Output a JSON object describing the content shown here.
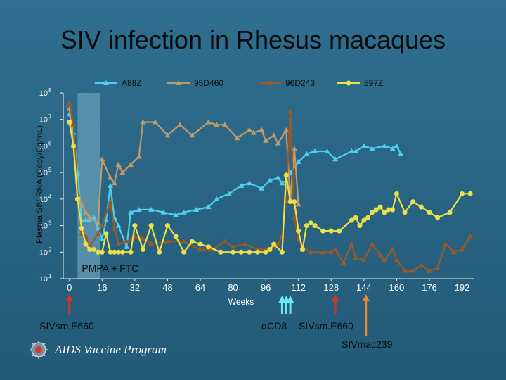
{
  "title": "SIV infection in Rhesus macaques",
  "chart_data": {
    "type": "line",
    "ylabel": "Plasma SIV RNA (Copy/Eq/mL)",
    "xlabel": "Weeks",
    "y_scale": "log",
    "ylim_exp": [
      1,
      8
    ],
    "xlim": [
      -3,
      198
    ],
    "x_ticks": [
      "0",
      "16",
      "32",
      "48",
      "64",
      "80",
      "96",
      "112",
      "128",
      "144",
      "160",
      "176",
      "192"
    ],
    "y_ticks": [
      "10^1",
      "10^2",
      "10^3",
      "10^4",
      "10^5",
      "10^6",
      "10^7",
      "10^8"
    ],
    "legend_position": "top",
    "shaded_region": {
      "label": "PMPA + FTC",
      "x": [
        4,
        15
      ]
    },
    "series": [
      {
        "name": "A88Z",
        "color": "#4fd0ea",
        "marker": "triangle",
        "points": [
          [
            0,
            7.2
          ],
          [
            2,
            6.5
          ],
          [
            4,
            5.0
          ],
          [
            6,
            3.2
          ],
          [
            8,
            3.2
          ],
          [
            10,
            3.2
          ],
          [
            12,
            3.3
          ],
          [
            14,
            2.9
          ],
          [
            16,
            2.5
          ],
          [
            18,
            3.2
          ],
          [
            20,
            4.5
          ],
          [
            22,
            3.3
          ],
          [
            24,
            3.0
          ],
          [
            28,
            2.2
          ],
          [
            30,
            3.5
          ],
          [
            34,
            3.6
          ],
          [
            40,
            3.6
          ],
          [
            46,
            3.5
          ],
          [
            52,
            3.4
          ],
          [
            56,
            3.5
          ],
          [
            62,
            3.6
          ],
          [
            68,
            3.7
          ],
          [
            72,
            4.0
          ],
          [
            78,
            4.2
          ],
          [
            84,
            4.5
          ],
          [
            88,
            4.6
          ],
          [
            94,
            4.4
          ],
          [
            98,
            4.7
          ],
          [
            102,
            4.8
          ],
          [
            104,
            4.6
          ],
          [
            106,
            4.7
          ],
          [
            108,
            5.0
          ],
          [
            112,
            5.4
          ],
          [
            116,
            5.7
          ],
          [
            120,
            5.8
          ],
          [
            126,
            5.8
          ],
          [
            130,
            5.5
          ],
          [
            138,
            5.8
          ],
          [
            140,
            5.8
          ],
          [
            144,
            6.0
          ],
          [
            148,
            5.9
          ],
          [
            154,
            6.0
          ],
          [
            158,
            5.9
          ],
          [
            160,
            6.0
          ],
          [
            162,
            5.7
          ]
        ]
      },
      {
        "name": "95D460",
        "color": "#c29a6a",
        "marker": "triangle",
        "points": [
          [
            0,
            7.4
          ],
          [
            2,
            6.0
          ],
          [
            4,
            4.2
          ],
          [
            6,
            3.8
          ],
          [
            8,
            3.5
          ],
          [
            10,
            3.3
          ],
          [
            14,
            3.1
          ],
          [
            16,
            5.5
          ],
          [
            20,
            4.8
          ],
          [
            22,
            4.6
          ],
          [
            24,
            5.3
          ],
          [
            26,
            5.0
          ],
          [
            30,
            5.3
          ],
          [
            34,
            5.6
          ],
          [
            36,
            6.9
          ],
          [
            42,
            6.9
          ],
          [
            48,
            6.4
          ],
          [
            54,
            6.8
          ],
          [
            60,
            6.4
          ],
          [
            68,
            6.9
          ],
          [
            72,
            6.8
          ],
          [
            76,
            6.8
          ],
          [
            82,
            6.3
          ],
          [
            88,
            6.6
          ],
          [
            90,
            6.5
          ],
          [
            94,
            6.6
          ],
          [
            96,
            6.2
          ],
          [
            100,
            6.4
          ],
          [
            102,
            6.1
          ],
          [
            106,
            6.6
          ],
          [
            108,
            4.0
          ],
          [
            110,
            5.9
          ],
          [
            112,
            3.8
          ]
        ]
      },
      {
        "name": "96D243",
        "color": "#9a5a28",
        "marker": "triangle",
        "points": [
          [
            0,
            7.6
          ],
          [
            2,
            6.8
          ],
          [
            4,
            4.2
          ],
          [
            6,
            2.7
          ],
          [
            8,
            2.6
          ],
          [
            10,
            2.2
          ],
          [
            14,
            2.7
          ],
          [
            16,
            3.0
          ],
          [
            20,
            3.9
          ],
          [
            22,
            2.9
          ],
          [
            24,
            2.3
          ],
          [
            28,
            2.4
          ],
          [
            32,
            2.6
          ],
          [
            36,
            2.5
          ],
          [
            40,
            2.3
          ],
          [
            48,
            2.4
          ],
          [
            56,
            2.4
          ],
          [
            64,
            2.1
          ],
          [
            70,
            2.1
          ],
          [
            76,
            2.4
          ],
          [
            80,
            2.2
          ],
          [
            86,
            2.3
          ],
          [
            92,
            2.1
          ],
          [
            96,
            2.1
          ],
          [
            100,
            2.2
          ],
          [
            102,
            2.3
          ],
          [
            104,
            2.6
          ],
          [
            106,
            4.0
          ],
          [
            108,
            7.3
          ],
          [
            110,
            3.3
          ],
          [
            112,
            2.5
          ],
          [
            114,
            2.2
          ],
          [
            118,
            2.0
          ],
          [
            124,
            2.0
          ],
          [
            128,
            2.0
          ],
          [
            130,
            2.1
          ],
          [
            134,
            1.6
          ],
          [
            138,
            2.3
          ],
          [
            140,
            1.8
          ],
          [
            144,
            1.7
          ],
          [
            148,
            2.3
          ],
          [
            152,
            1.9
          ],
          [
            154,
            1.7
          ],
          [
            158,
            2.1
          ],
          [
            160,
            1.7
          ],
          [
            164,
            1.3
          ],
          [
            168,
            1.3
          ],
          [
            172,
            1.5
          ],
          [
            176,
            1.3
          ],
          [
            180,
            1.4
          ],
          [
            184,
            2.3
          ],
          [
            188,
            2.0
          ],
          [
            192,
            2.1
          ],
          [
            196,
            2.6
          ]
        ]
      },
      {
        "name": "597Z",
        "color": "#ece04a",
        "marker": "circle",
        "points": [
          [
            0,
            6.9
          ],
          [
            2,
            6.0
          ],
          [
            4,
            4.0
          ],
          [
            6,
            2.9
          ],
          [
            8,
            2.3
          ],
          [
            10,
            2.1
          ],
          [
            12,
            2.1
          ],
          [
            14,
            2.0
          ],
          [
            16,
            2.0
          ],
          [
            18,
            2.7
          ],
          [
            20,
            2.0
          ],
          [
            22,
            2.0
          ],
          [
            24,
            2.0
          ],
          [
            26,
            2.0
          ],
          [
            30,
            2.0
          ],
          [
            32,
            3.0
          ],
          [
            36,
            2.1
          ],
          [
            40,
            3.0
          ],
          [
            44,
            2.0
          ],
          [
            48,
            3.0
          ],
          [
            52,
            2.6
          ],
          [
            56,
            2.0
          ],
          [
            60,
            2.4
          ],
          [
            64,
            2.3
          ],
          [
            68,
            2.2
          ],
          [
            74,
            2.0
          ],
          [
            80,
            2.0
          ],
          [
            84,
            2.0
          ],
          [
            88,
            2.0
          ],
          [
            92,
            2.0
          ],
          [
            96,
            2.0
          ],
          [
            98,
            2.1
          ],
          [
            100,
            2.3
          ],
          [
            104,
            2.0
          ],
          [
            106,
            4.9
          ],
          [
            108,
            3.9
          ],
          [
            110,
            3.9
          ],
          [
            112,
            2.8
          ],
          [
            114,
            2.1
          ],
          [
            116,
            3.0
          ],
          [
            118,
            3.1
          ],
          [
            120,
            3.0
          ],
          [
            124,
            2.8
          ],
          [
            128,
            2.8
          ],
          [
            132,
            2.8
          ],
          [
            138,
            3.2
          ],
          [
            140,
            3.3
          ],
          [
            142,
            3.0
          ],
          [
            144,
            3.2
          ],
          [
            146,
            3.3
          ],
          [
            148,
            3.5
          ],
          [
            150,
            3.6
          ],
          [
            152,
            3.7
          ],
          [
            154,
            3.5
          ],
          [
            156,
            3.6
          ],
          [
            158,
            3.6
          ],
          [
            160,
            4.2
          ],
          [
            164,
            3.5
          ],
          [
            168,
            3.9
          ],
          [
            172,
            3.7
          ],
          [
            176,
            3.5
          ],
          [
            180,
            3.3
          ],
          [
            186,
            3.5
          ],
          [
            192,
            4.2
          ],
          [
            196,
            4.2
          ]
        ]
      }
    ]
  },
  "annotations": {
    "arrow1_label": "SIVsm.E660",
    "arrow2_label": "αCD8",
    "arrow3_label": "SIVsm.E660",
    "arrow4_label": "SIVmac239"
  },
  "colors": {
    "red_arrow": "#e0301e",
    "cyan_arrow": "#6ae8f0",
    "orange_arrow": "#e88a30",
    "axis": "#f0f0f0"
  },
  "logo": {
    "text": "AIDS Vaccine Program"
  }
}
